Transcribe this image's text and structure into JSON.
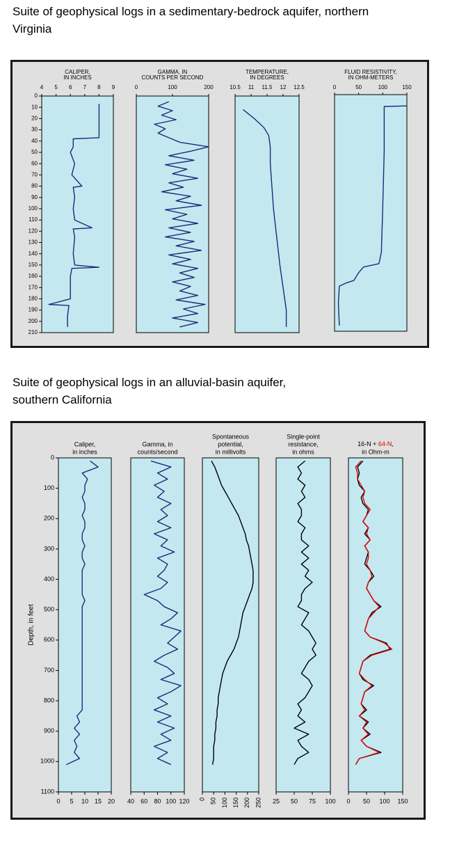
{
  "captions": [
    [
      "Suite of geophysical logs in a sedimentary-bedrock aquifer, northern",
      "Virginia"
    ],
    [
      "Suite of geophysical logs in an alluvial-basin aquifer,",
      "southern California"
    ]
  ],
  "chart_data": [
    {
      "type": "line",
      "title": [
        "CALIPER,",
        "IN INCHES"
      ],
      "xlim": [
        4,
        9
      ],
      "xticks": [
        4,
        5,
        6,
        7,
        8,
        9
      ],
      "ylim": [
        0,
        210
      ],
      "yticks": [
        0,
        10,
        20,
        30,
        40,
        50,
        60,
        70,
        80,
        90,
        100,
        110,
        120,
        130,
        140,
        150,
        160,
        170,
        180,
        190,
        200,
        210
      ],
      "depth": [
        7,
        20,
        37,
        38,
        45,
        50,
        60,
        70,
        80,
        81,
        90,
        100,
        110,
        117,
        118,
        125,
        140,
        150,
        152,
        153,
        160,
        170,
        180,
        185,
        186,
        195,
        205
      ],
      "series": [
        {
          "color": "#1c2a7a",
          "values": [
            8,
            8,
            8,
            6.2,
            6.2,
            6.0,
            6.3,
            6.1,
            6.8,
            6.2,
            6.3,
            6.2,
            6.3,
            7.5,
            6.2,
            6.3,
            6.2,
            6.3,
            8,
            6.1,
            6.0,
            6.0,
            6.0,
            4.5,
            5.9,
            5.8,
            5.8
          ]
        }
      ]
    },
    {
      "type": "line",
      "title": [
        "GAMMA, IN",
        "COUNTS PER SECOND"
      ],
      "xlim": [
        0,
        200
      ],
      "xticks": [
        0,
        100,
        200
      ],
      "ylim": [
        0,
        210
      ],
      "depth": [
        5,
        9,
        13,
        17,
        21,
        25,
        29,
        33,
        37,
        41,
        45,
        49,
        53,
        57,
        61,
        65,
        69,
        73,
        77,
        81,
        85,
        89,
        93,
        97,
        101,
        105,
        109,
        113,
        117,
        121,
        125,
        129,
        133,
        137,
        141,
        145,
        149,
        153,
        157,
        161,
        165,
        169,
        173,
        177,
        181,
        185,
        189,
        193,
        197,
        201,
        205
      ],
      "series": [
        {
          "color": "#1c2a7a",
          "values": [
            90,
            60,
            100,
            70,
            110,
            50,
            80,
            60,
            90,
            120,
            200,
            150,
            90,
            160,
            80,
            140,
            100,
            170,
            90,
            130,
            70,
            150,
            110,
            180,
            80,
            140,
            100,
            170,
            90,
            150,
            80,
            160,
            110,
            180,
            90,
            150,
            100,
            170,
            120,
            160,
            100,
            150,
            120,
            170,
            110,
            190,
            130,
            170,
            100,
            170,
            120
          ]
        }
      ]
    },
    {
      "type": "line",
      "title": [
        "TEMPERATURE,",
        "IN DEGREES"
      ],
      "xlim": [
        10.5,
        12.5
      ],
      "xticks": [
        10.5,
        11,
        11.5,
        12,
        12.5
      ],
      "ylim": [
        0,
        210
      ],
      "depth": [
        12,
        20,
        28,
        35,
        45,
        60,
        100,
        150,
        170,
        190,
        205
      ],
      "series": [
        {
          "color": "#1c2a7a",
          "values": [
            10.75,
            11.1,
            11.4,
            11.55,
            11.6,
            11.6,
            11.7,
            11.9,
            12.0,
            12.1,
            12.1
          ]
        }
      ]
    },
    {
      "type": "line",
      "title": [
        "FLUID RESISTIVITY,",
        "IN OHM-METERS"
      ],
      "xlim": [
        0,
        150
      ],
      "xticks": [
        0,
        50,
        100,
        150
      ],
      "ylim": [
        0,
        210
      ],
      "depth": [
        10,
        10.5,
        20,
        50,
        100,
        140,
        150,
        153,
        158,
        165,
        167,
        170,
        185,
        205
      ],
      "series": [
        {
          "color": "#1c2a7a",
          "values": [
            150,
            103,
            103,
            103,
            100,
            97,
            92,
            60,
            50,
            40,
            25,
            10,
            8,
            10
          ]
        }
      ]
    },
    {
      "type": "line",
      "title": [
        "Caliper,",
        "in inches"
      ],
      "xlim": [
        0,
        20
      ],
      "xticks": [
        0,
        5,
        10,
        15,
        20
      ],
      "ylim": [
        0,
        1100
      ],
      "yticks": [
        0,
        100,
        200,
        300,
        400,
        500,
        600,
        700,
        800,
        900,
        1000,
        1100
      ],
      "ylabel": "Depth, in feet",
      "depth": [
        10,
        30,
        50,
        70,
        90,
        110,
        130,
        150,
        170,
        190,
        210,
        230,
        250,
        270,
        290,
        310,
        330,
        350,
        370,
        390,
        410,
        430,
        450,
        470,
        490,
        510,
        530,
        550,
        570,
        590,
        610,
        630,
        650,
        670,
        690,
        710,
        730,
        750,
        770,
        790,
        810,
        830,
        850,
        870,
        890,
        910,
        930,
        950,
        970,
        990,
        1010
      ],
      "series": [
        {
          "color": "#1c2a7a",
          "values": [
            12,
            15,
            9,
            11,
            10,
            10,
            9,
            10,
            10,
            9,
            10,
            10,
            9,
            9,
            10,
            9,
            9,
            10,
            9,
            9,
            9,
            9,
            9,
            10,
            9,
            9,
            9,
            9,
            9,
            9,
            9,
            9,
            9,
            9,
            9,
            9,
            9,
            9,
            9,
            9,
            9,
            9,
            7,
            8,
            6,
            8,
            6,
            7,
            6,
            8,
            3
          ]
        }
      ]
    },
    {
      "type": "line",
      "title": [
        "Gamma, in",
        "counts/second"
      ],
      "xlim": [
        40,
        120
      ],
      "xticks": [
        40,
        60,
        80,
        100,
        120
      ],
      "ylim": [
        0,
        1100
      ],
      "depth": [
        10,
        30,
        50,
        70,
        90,
        110,
        130,
        150,
        170,
        190,
        210,
        230,
        250,
        270,
        290,
        310,
        330,
        350,
        370,
        390,
        410,
        430,
        450,
        470,
        490,
        510,
        530,
        550,
        570,
        590,
        610,
        630,
        650,
        670,
        690,
        710,
        730,
        750,
        770,
        790,
        810,
        830,
        850,
        870,
        890,
        910,
        930,
        950,
        970,
        990,
        1010
      ],
      "series": [
        {
          "color": "#1c2a7a",
          "values": [
            70,
            100,
            80,
            95,
            75,
            90,
            80,
            100,
            85,
            95,
            80,
            100,
            75,
            95,
            85,
            105,
            80,
            95,
            90,
            80,
            95,
            85,
            60,
            80,
            90,
            110,
            100,
            85,
            115,
            105,
            95,
            110,
            90,
            75,
            95,
            105,
            85,
            115,
            100,
            80,
            95,
            75,
            100,
            80,
            105,
            85,
            100,
            75,
            95,
            80,
            100
          ]
        }
      ]
    },
    {
      "type": "line",
      "title": [
        "Spontaneous",
        "potential,",
        "in millivolts"
      ],
      "xlim": [
        0,
        250
      ],
      "xticks": [
        0,
        50,
        100,
        150,
        200,
        250
      ],
      "ylim": [
        0,
        1100
      ],
      "depth": [
        10,
        30,
        50,
        70,
        90,
        110,
        130,
        150,
        170,
        190,
        210,
        230,
        250,
        270,
        290,
        310,
        330,
        350,
        370,
        390,
        410,
        430,
        450,
        470,
        490,
        510,
        530,
        550,
        570,
        590,
        610,
        630,
        650,
        670,
        690,
        710,
        730,
        750,
        770,
        790,
        810,
        830,
        850,
        870,
        890,
        910,
        930,
        950,
        970,
        990,
        1010
      ],
      "series": [
        {
          "color": "#000000",
          "values": [
            40,
            55,
            65,
            75,
            85,
            100,
            115,
            130,
            145,
            160,
            170,
            180,
            190,
            195,
            205,
            210,
            215,
            220,
            225,
            225,
            225,
            220,
            210,
            200,
            190,
            180,
            175,
            170,
            165,
            160,
            150,
            140,
            125,
            110,
            100,
            90,
            85,
            80,
            75,
            70,
            70,
            65,
            65,
            60,
            60,
            55,
            55,
            50,
            50,
            50,
            45
          ]
        }
      ]
    },
    {
      "type": "line",
      "title": [
        "Single-point",
        "resistance,",
        "in ohms"
      ],
      "xlim": [
        25,
        100
      ],
      "xticks": [
        25,
        50,
        75,
        100
      ],
      "ylim": [
        0,
        1100
      ],
      "depth": [
        10,
        30,
        50,
        70,
        90,
        110,
        130,
        150,
        170,
        190,
        210,
        230,
        250,
        270,
        290,
        310,
        330,
        350,
        370,
        390,
        410,
        430,
        450,
        470,
        490,
        510,
        530,
        550,
        570,
        590,
        610,
        630,
        650,
        670,
        690,
        710,
        730,
        750,
        770,
        790,
        810,
        830,
        850,
        870,
        890,
        910,
        930,
        950,
        970,
        990,
        1010
      ],
      "series": [
        {
          "color": "#000000",
          "values": [
            65,
            55,
            60,
            55,
            65,
            60,
            65,
            55,
            60,
            60,
            55,
            65,
            60,
            60,
            70,
            60,
            70,
            60,
            70,
            65,
            75,
            65,
            60,
            60,
            55,
            70,
            65,
            60,
            70,
            75,
            80,
            75,
            80,
            70,
            65,
            60,
            70,
            75,
            70,
            65,
            55,
            60,
            55,
            65,
            50,
            70,
            55,
            60,
            70,
            55,
            50
          ]
        }
      ]
    },
    {
      "type": "line",
      "title": [
        [
          {
            "text": "16-N + ",
            "color": "#000000"
          },
          {
            "text": "64-N",
            "color": "#e00000"
          },
          {
            "text": ",",
            "color": "#000000"
          }
        ],
        "in Ohm-m"
      ],
      "xlim": [
        0,
        150
      ],
      "xticks": [
        0,
        50,
        100,
        150
      ],
      "ylim": [
        0,
        1100
      ],
      "depth": [
        10,
        30,
        50,
        70,
        90,
        110,
        130,
        150,
        170,
        190,
        210,
        230,
        250,
        270,
        290,
        310,
        330,
        350,
        370,
        390,
        410,
        430,
        450,
        470,
        490,
        510,
        530,
        550,
        570,
        590,
        610,
        630,
        650,
        670,
        690,
        710,
        730,
        750,
        770,
        790,
        810,
        830,
        850,
        870,
        890,
        910,
        930,
        950,
        970,
        990,
        1010
      ],
      "series": [
        {
          "color": "#000000",
          "values": [
            40,
            25,
            30,
            25,
            30,
            45,
            35,
            40,
            55,
            50,
            40,
            55,
            45,
            60,
            45,
            55,
            50,
            45,
            60,
            70,
            55,
            50,
            60,
            70,
            90,
            65,
            55,
            50,
            45,
            60,
            105,
            115,
            60,
            40,
            35,
            30,
            40,
            70,
            45,
            40,
            35,
            50,
            30,
            55,
            40,
            60,
            35,
            50,
            90,
            30,
            20
          ]
        },
        {
          "color": "#e00000",
          "values": [
            35,
            20,
            25,
            25,
            35,
            45,
            40,
            45,
            60,
            50,
            40,
            55,
            50,
            60,
            45,
            55,
            55,
            50,
            60,
            65,
            55,
            50,
            60,
            70,
            85,
            70,
            55,
            50,
            45,
            60,
            100,
            120,
            65,
            40,
            35,
            30,
            45,
            65,
            45,
            40,
            35,
            45,
            30,
            50,
            40,
            55,
            35,
            50,
            85,
            30,
            20
          ]
        }
      ]
    }
  ]
}
